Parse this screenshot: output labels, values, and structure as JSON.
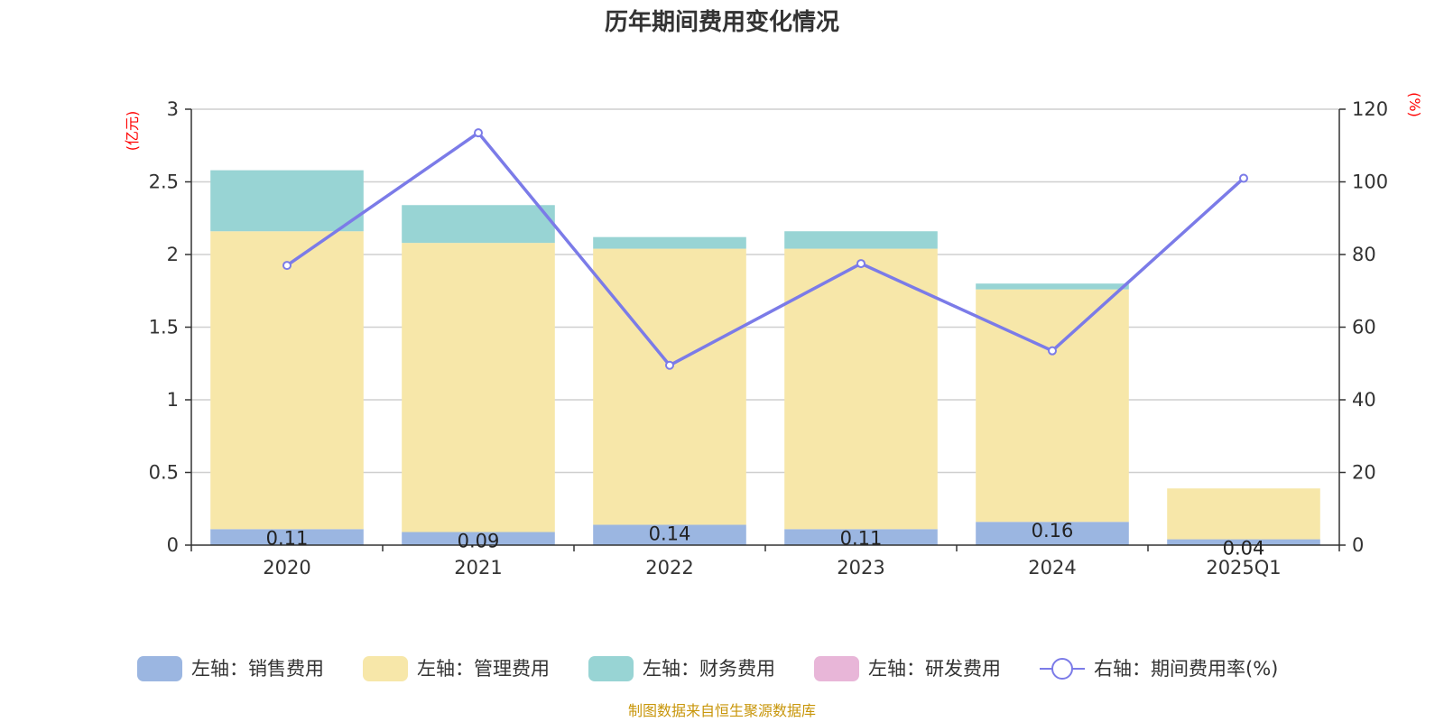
{
  "chart_data": {
    "type": "bar",
    "title": "历年期间费用变化情况",
    "categories": [
      "2020",
      "2021",
      "2022",
      "2023",
      "2024",
      "2025Q1"
    ],
    "left_axis": {
      "unit": "(亿元)",
      "ylim": [
        0,
        3
      ],
      "ticks": [
        "0",
        "0.5",
        "1",
        "1.5",
        "2",
        "2.5",
        "3"
      ],
      "tick_values": [
        0,
        0.5,
        1,
        1.5,
        2,
        2.5,
        3
      ]
    },
    "right_axis": {
      "unit": "(%)",
      "ylim": [
        0,
        120
      ],
      "ticks": [
        "0",
        "20",
        "40",
        "60",
        "80",
        "100",
        "120"
      ],
      "tick_values": [
        0,
        20,
        40,
        60,
        80,
        100,
        120
      ]
    },
    "series": [
      {
        "name": "左轴：销售费用",
        "type": "bar",
        "axis": "left",
        "color": "#9bb6e1",
        "values": [
          0.11,
          0.09,
          0.14,
          0.11,
          0.16,
          0.04
        ],
        "labels": [
          "0.11",
          "0.09",
          "0.14",
          "0.11",
          "0.16",
          "0.04"
        ]
      },
      {
        "name": "左轴：管理费用",
        "type": "bar",
        "axis": "left",
        "color": "#f7e7a9",
        "values": [
          2.05,
          1.99,
          1.9,
          1.93,
          1.6,
          0.35
        ]
      },
      {
        "name": "左轴：财务费用",
        "type": "bar",
        "axis": "left",
        "color": "#98d4d4",
        "values": [
          0.42,
          0.26,
          0.08,
          0.12,
          0.04,
          0.0
        ]
      },
      {
        "name": "左轴：研发费用",
        "type": "bar",
        "axis": "left",
        "color": "#e8b6d8",
        "values": [
          0,
          0,
          0,
          0,
          0,
          0
        ]
      },
      {
        "name": "右轴：期间费用率(%)",
        "type": "line",
        "axis": "right",
        "color": "#7b7be8",
        "values": [
          77.0,
          113.5,
          49.5,
          77.5,
          53.5,
          101.0
        ]
      }
    ],
    "grid": true,
    "legend_position": "bottom"
  },
  "source_text": "制图数据来自恒生聚源数据库"
}
